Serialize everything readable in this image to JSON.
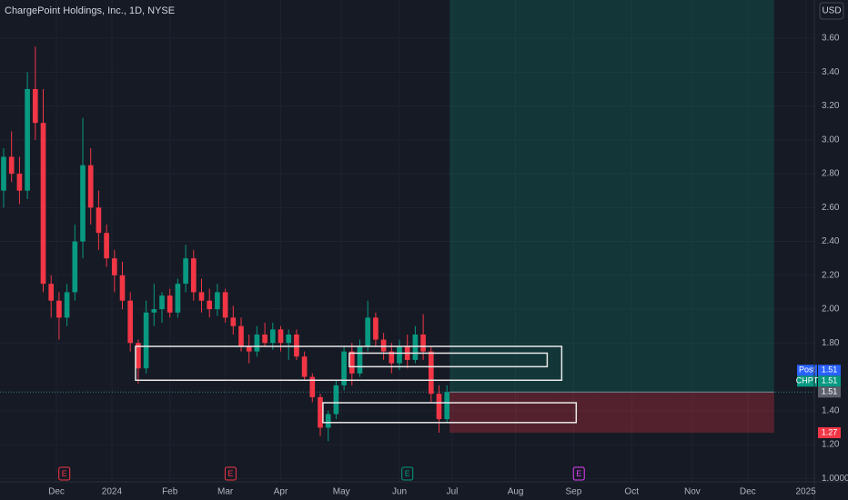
{
  "header": {
    "title": "ChargePoint Holdings, Inc., 1D, NYSE",
    "currency": "USD"
  },
  "chart_data": {
    "type": "candlestick",
    "up_color": "#089981",
    "down_color": "#f23645",
    "x": [
      -20,
      -17,
      -14,
      -11,
      -8,
      -5,
      -2,
      1,
      4,
      7,
      10,
      13,
      16,
      19,
      22,
      25,
      28,
      31,
      34,
      37,
      40,
      43,
      46,
      49,
      52,
      55,
      58,
      61,
      64,
      67,
      70,
      73,
      76,
      79,
      82,
      85,
      88,
      91,
      94,
      97,
      100,
      103,
      106,
      109,
      112,
      115,
      118,
      121,
      124,
      127,
      130,
      133,
      136,
      139,
      142,
      145,
      148
    ],
    "open": [
      2.7,
      2.9,
      2.8,
      2.7,
      3.3,
      3.1,
      2.15,
      2.05,
      1.95,
      2.1,
      2.4,
      2.85,
      2.6,
      2.45,
      2.3,
      2.2,
      2.05,
      1.8,
      1.65,
      1.98,
      2.0,
      2.08,
      1.98,
      2.15,
      2.3,
      2.1,
      2.05,
      2.0,
      2.1,
      1.95,
      1.9,
      1.78,
      1.75,
      1.85,
      1.8,
      1.88,
      1.8,
      1.85,
      1.72,
      1.6,
      1.48,
      1.3,
      1.38,
      1.55,
      1.75,
      1.62,
      1.78,
      1.95,
      1.82,
      1.75,
      1.68,
      1.78,
      1.7,
      1.85,
      1.75,
      1.5,
      1.35
    ],
    "high": [
      2.95,
      3.05,
      2.9,
      3.4,
      3.55,
      3.3,
      2.2,
      2.1,
      2.15,
      2.5,
      3.13,
      2.95,
      2.7,
      2.5,
      2.35,
      2.28,
      2.1,
      1.82,
      2.05,
      2.15,
      2.1,
      2.12,
      2.18,
      2.38,
      2.35,
      2.18,
      2.12,
      2.15,
      2.12,
      2.02,
      1.95,
      1.85,
      1.9,
      1.92,
      1.92,
      1.9,
      1.88,
      1.88,
      1.75,
      1.62,
      1.5,
      1.4,
      1.58,
      1.78,
      1.8,
      1.82,
      2.05,
      1.98,
      1.86,
      1.8,
      1.82,
      1.85,
      1.9,
      1.97,
      1.78,
      1.55,
      1.55
    ],
    "low": [
      2.6,
      2.75,
      2.62,
      2.65,
      3.0,
      2.1,
      1.95,
      1.82,
      1.9,
      2.05,
      2.3,
      2.5,
      2.35,
      2.25,
      2.1,
      2.0,
      1.75,
      1.56,
      1.62,
      1.9,
      1.92,
      1.95,
      1.95,
      2.1,
      2.05,
      1.98,
      1.95,
      1.96,
      1.92,
      1.85,
      1.75,
      1.68,
      1.72,
      1.78,
      1.76,
      1.75,
      1.7,
      1.7,
      1.58,
      1.45,
      1.25,
      1.22,
      1.35,
      1.52,
      1.55,
      1.6,
      1.75,
      1.78,
      1.7,
      1.62,
      1.64,
      1.65,
      1.68,
      1.7,
      1.45,
      1.27,
      1.33
    ],
    "close": [
      2.9,
      2.8,
      2.7,
      3.3,
      3.1,
      2.15,
      2.05,
      1.95,
      2.1,
      2.4,
      2.85,
      2.6,
      2.45,
      2.3,
      2.2,
      2.05,
      1.8,
      1.65,
      1.98,
      2.0,
      2.08,
      1.98,
      2.15,
      2.3,
      2.1,
      2.05,
      2.0,
      2.1,
      1.95,
      1.9,
      1.78,
      1.75,
      1.85,
      1.8,
      1.88,
      1.8,
      1.85,
      1.72,
      1.6,
      1.48,
      1.3,
      1.38,
      1.55,
      1.75,
      1.62,
      1.78,
      1.95,
      1.82,
      1.75,
      1.68,
      1.78,
      1.7,
      1.85,
      1.75,
      1.5,
      1.35,
      1.51
    ],
    "xlim": [
      -21.38,
      287.24
    ],
    "xticks": [
      {
        "value": 0,
        "label": "Dec"
      },
      {
        "value": 21,
        "label": "2024"
      },
      {
        "value": 43,
        "label": "Feb"
      },
      {
        "value": 64,
        "label": "Mar"
      },
      {
        "value": 85,
        "label": "Apr"
      },
      {
        "value": 108,
        "label": "May"
      },
      {
        "value": 130,
        "label": "Jun"
      },
      {
        "value": 150,
        "label": "Jul"
      },
      {
        "value": 174,
        "label": "Aug"
      },
      {
        "value": 196,
        "label": "Sep"
      },
      {
        "value": 218,
        "label": "Oct"
      },
      {
        "value": 241,
        "label": "Nov"
      },
      {
        "value": 262,
        "label": "Dec"
      },
      {
        "value": 284,
        "label": "2025"
      }
    ],
    "ylim": [
      0.98,
      3.826
    ],
    "yticks": [
      {
        "value": 1.0,
        "label": "1.0000"
      },
      {
        "value": 1.2,
        "label": "1.20"
      },
      {
        "value": 1.4,
        "label": "1.40"
      },
      {
        "value": 1.8,
        "label": "1.80"
      },
      {
        "value": 2.0,
        "label": "2.00"
      },
      {
        "value": 2.2,
        "label": "2.20"
      },
      {
        "value": 2.4,
        "label": "2.40"
      },
      {
        "value": 2.6,
        "label": "2.60"
      },
      {
        "value": 2.8,
        "label": "2.80"
      },
      {
        "value": 3.0,
        "label": "3.00"
      },
      {
        "value": 3.2,
        "label": "3.20"
      },
      {
        "value": 3.4,
        "label": "3.40"
      },
      {
        "value": 3.6,
        "label": "3.60"
      }
    ],
    "grid": true,
    "rectangles": [
      {
        "x0": 30,
        "x1": 191.5,
        "top": 1.78,
        "bottom": 1.58
      },
      {
        "x0": 111,
        "x1": 186,
        "top": 1.74,
        "bottom": 1.66
      },
      {
        "x0": 101,
        "x1": 197,
        "top": 1.447,
        "bottom": 1.33
      }
    ],
    "position": {
      "x0": 149,
      "x1": 272,
      "target": 3.83,
      "entry": 1.51,
      "stop": 1.27
    },
    "last_price": 1.51,
    "price_labels": [
      {
        "name": "Post",
        "value": 1.51,
        "color": "#2962ff"
      },
      {
        "name": "CHPT",
        "value": 1.51,
        "color": "#089981"
      },
      {
        "value": 1.51,
        "color": "#5d606b"
      },
      {
        "value": 1.27,
        "color": "#f23645"
      }
    ],
    "events": [
      {
        "x": 3,
        "label": "E",
        "color": "#f23645"
      },
      {
        "x": 66,
        "label": "E",
        "color": "#f23645"
      },
      {
        "x": 133,
        "label": "E",
        "color": "#089981"
      },
      {
        "x": 198,
        "label": "E",
        "color": "#e040fb"
      }
    ]
  }
}
